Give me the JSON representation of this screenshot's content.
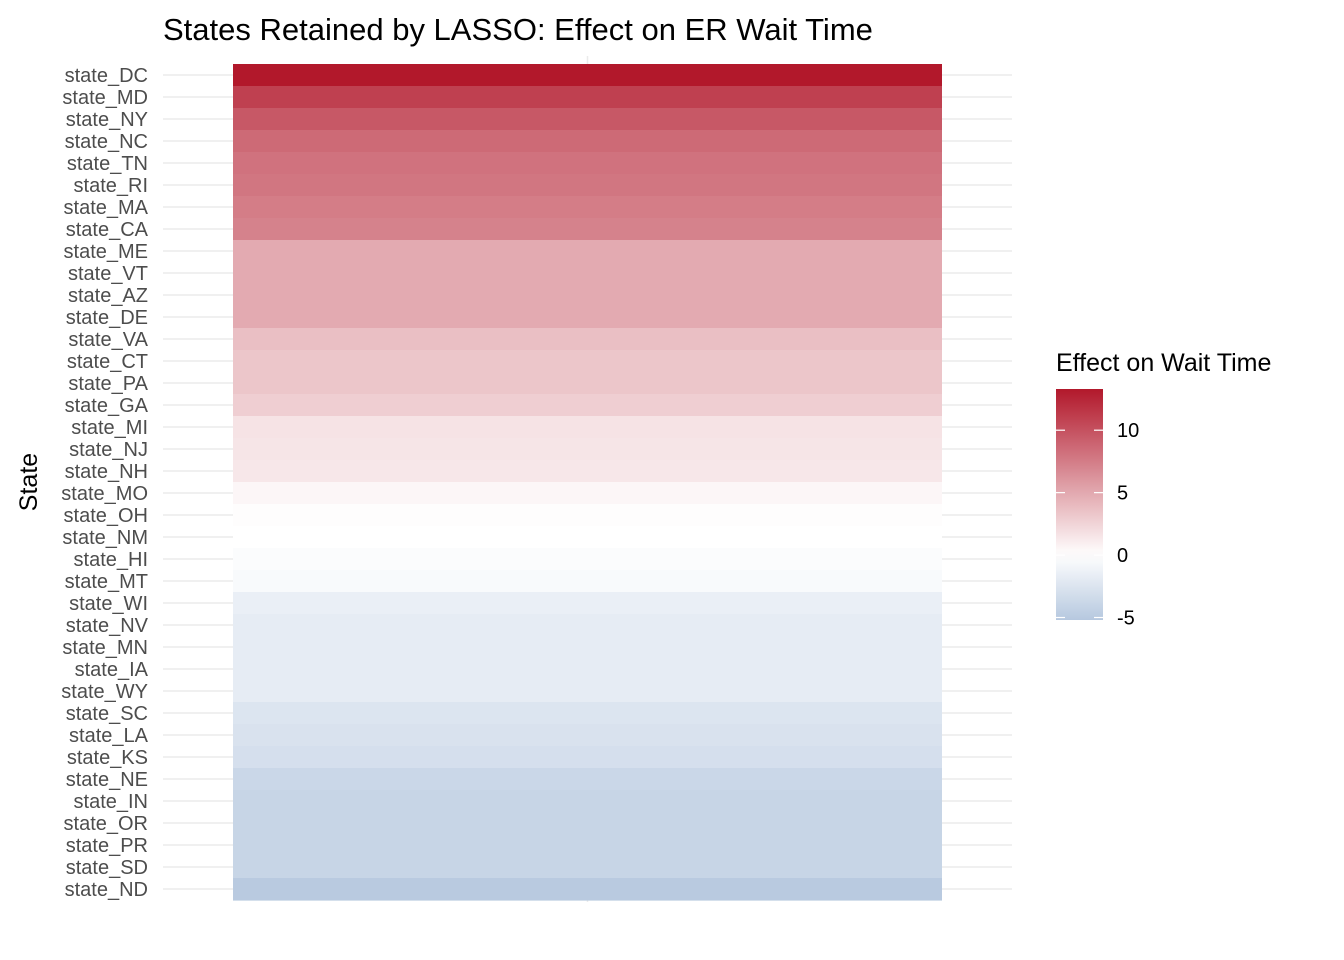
{
  "chart_data": {
    "type": "heatmap",
    "title": "States Retained by LASSO: Effect on ER Wait Time",
    "xlabel": "",
    "ylabel": "State",
    "categories": [
      "state_DC",
      "state_MD",
      "state_NY",
      "state_NC",
      "state_TN",
      "state_RI",
      "state_MA",
      "state_CA",
      "state_ME",
      "state_VT",
      "state_AZ",
      "state_DE",
      "state_VA",
      "state_CT",
      "state_PA",
      "state_GA",
      "state_MI",
      "state_NJ",
      "state_NH",
      "state_MO",
      "state_OH",
      "state_NM",
      "state_HI",
      "state_MT",
      "state_WI",
      "state_NV",
      "state_MN",
      "state_IA",
      "state_WY",
      "state_SC",
      "state_LA",
      "state_KS",
      "state_NE",
      "state_IN",
      "state_OR",
      "state_PR",
      "state_SD",
      "state_ND"
    ],
    "values": [
      13.3,
      11.0,
      9.6,
      8.6,
      8.1,
      7.9,
      7.5,
      7.2,
      4.9,
      4.9,
      4.9,
      4.9,
      3.7,
      3.3,
      3.3,
      2.8,
      1.6,
      1.5,
      1.4,
      0.5,
      0.1,
      0.0,
      -0.3,
      -0.5,
      -1.5,
      -1.8,
      -1.8,
      -1.8,
      -1.8,
      -2.5,
      -2.7,
      -3.0,
      -3.8,
      -4.0,
      -4.0,
      -4.0,
      -4.0,
      -5.0
    ],
    "grid": true,
    "legend": {
      "title": "Effect on Wait Time",
      "position": "right",
      "breaks": [
        10,
        5,
        0,
        -5
      ],
      "range": [
        -5.2,
        13.3
      ]
    },
    "colors": {
      "low": "#b6c8df",
      "mid": "#ffffff",
      "high": "#b2182b",
      "grid": "#ebebeb"
    }
  }
}
